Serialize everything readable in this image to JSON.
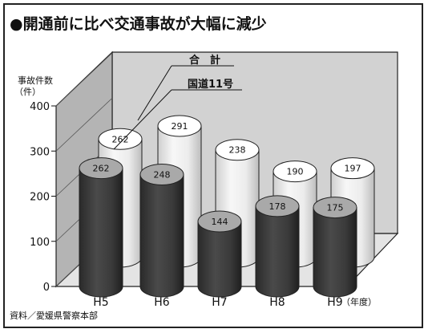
{
  "headline": "●開通前に比べ交通事故が大幅に減少",
  "source_note": "資料／愛媛県警察本部",
  "chart_data": {
    "type": "bar",
    "title": "●開通前に比べ交通事故が大幅に減少",
    "ylabel_line1": "事故件数",
    "ylabel_line2": "（件）",
    "x_unit_label": "（年度）",
    "categories": [
      "H5",
      "H6",
      "H7",
      "H8",
      "H9"
    ],
    "series": [
      {
        "name": "合　計",
        "values": [
          262,
          291,
          238,
          190,
          197
        ],
        "color": "#f2f2f2"
      },
      {
        "name": "国道11号",
        "values": [
          262,
          248,
          144,
          178,
          175
        ],
        "color": "#3c3c3c"
      }
    ],
    "ylim": [
      0,
      400
    ],
    "yticks": [
      0,
      100,
      200,
      300,
      400
    ],
    "grid": false,
    "legend": "callout-top"
  }
}
